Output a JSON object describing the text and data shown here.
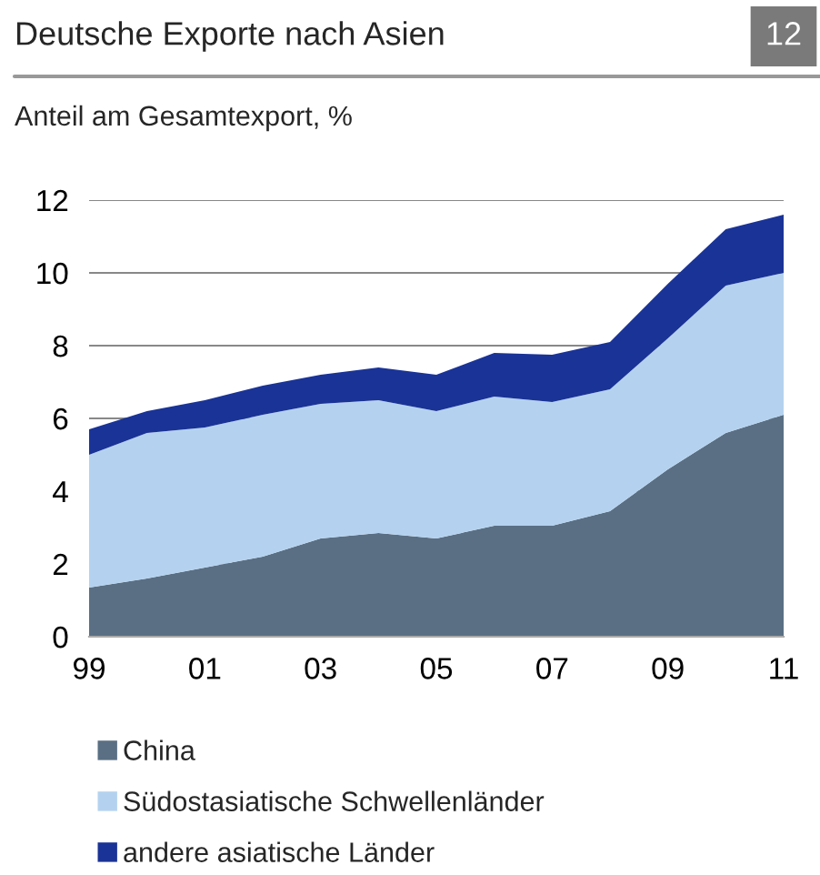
{
  "chart_data": {
    "type": "area",
    "stacked": true,
    "title": "Deutsche Exporte nach Asien",
    "subtitle": "Anteil am Gesamtexport, %",
    "annotations": [
      "12"
    ],
    "categories": [
      "99",
      null,
      "01",
      null,
      "03",
      null,
      "05",
      null,
      "07",
      null,
      "09",
      null,
      "11"
    ],
    "series": [
      {
        "name": "China",
        "color": "#5a6f84",
        "values": [
          1.35,
          1.6,
          1.9,
          2.2,
          2.7,
          2.85,
          2.7,
          3.05,
          3.05,
          3.45,
          4.6,
          5.6,
          6.1
        ]
      },
      {
        "name": "Südostasiatische Schwellenländer",
        "color": "#b4d2ef",
        "values": [
          3.65,
          4.0,
          3.85,
          3.9,
          3.7,
          3.65,
          3.5,
          3.55,
          3.4,
          3.35,
          3.6,
          4.05,
          3.9
        ]
      },
      {
        "name": "andere asiatische Länder",
        "color": "#1a3396",
        "values": [
          0.7,
          0.6,
          0.75,
          0.8,
          0.8,
          0.9,
          1.0,
          1.2,
          1.3,
          1.3,
          1.5,
          1.55,
          1.6
        ]
      }
    ],
    "ylim": [
      0,
      12
    ],
    "yticks": [
      0,
      2,
      4,
      6,
      8,
      10,
      12
    ],
    "grid": "y",
    "legend": "bottom"
  }
}
